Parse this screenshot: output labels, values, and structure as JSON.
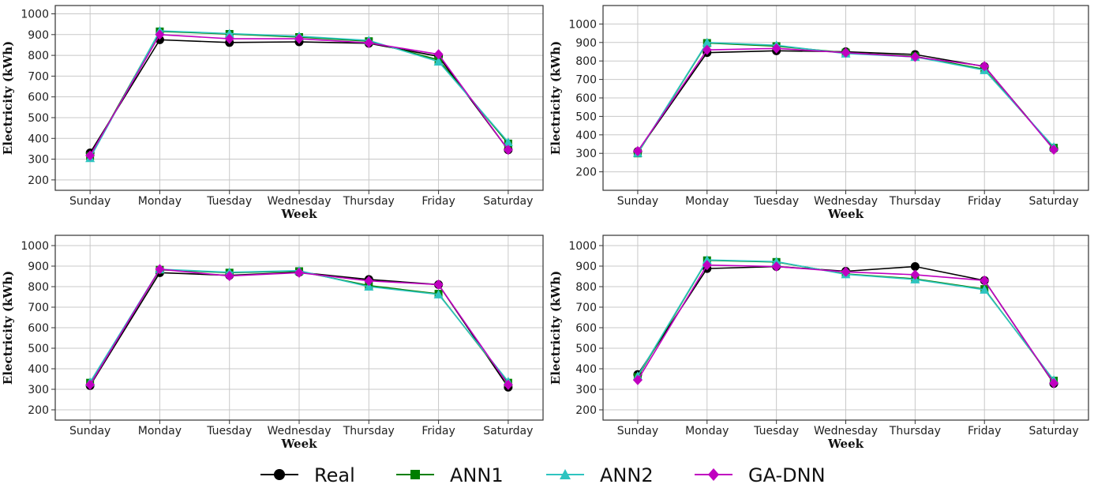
{
  "colors": {
    "Real": "#000000",
    "ANN1": "#007f00",
    "ANN2": "#2ec4c0",
    "GA-DNN": "#c000c0",
    "grid": "#c8c8c8",
    "frame": "#333333"
  },
  "legend": {
    "items": [
      {
        "name": "Real",
        "marker": "circle"
      },
      {
        "name": "ANN1",
        "marker": "square"
      },
      {
        "name": "ANN2",
        "marker": "triangle"
      },
      {
        "name": "GA-DNN",
        "marker": "diamond"
      }
    ]
  },
  "chart_data": [
    {
      "type": "line",
      "categories": [
        "Sunday",
        "Monday",
        "Tuesday",
        "Wednesday",
        "Thursday",
        "Friday",
        "Saturday"
      ],
      "xlabel": "Week",
      "ylabel": "Electricity (kWh)",
      "ylim": [
        150,
        1040
      ],
      "yticks": [
        200,
        300,
        400,
        500,
        600,
        700,
        800,
        900,
        1000
      ],
      "grid": true,
      "series": [
        {
          "name": "Real",
          "marker": "circle",
          "values": [
            330,
            875,
            862,
            865,
            858,
            795,
            345
          ]
        },
        {
          "name": "ANN1",
          "marker": "square",
          "values": [
            315,
            915,
            903,
            888,
            868,
            778,
            375
          ]
        },
        {
          "name": "ANN2",
          "marker": "triangle",
          "values": [
            305,
            918,
            905,
            892,
            872,
            770,
            382
          ]
        },
        {
          "name": "GA-DNN",
          "marker": "diamond",
          "values": [
            318,
            900,
            880,
            880,
            860,
            805,
            345
          ]
        }
      ]
    },
    {
      "type": "line",
      "categories": [
        "Sunday",
        "Monday",
        "Tuesday",
        "Wednesday",
        "Thursday",
        "Friday",
        "Saturday"
      ],
      "xlabel": "Week",
      "ylabel": "Electricity (kWh)",
      "ylim": [
        100,
        1100
      ],
      "yticks": [
        200,
        300,
        400,
        500,
        600,
        700,
        800,
        900,
        1000
      ],
      "grid": true,
      "series": [
        {
          "name": "Real",
          "marker": "circle",
          "values": [
            310,
            845,
            855,
            850,
            835,
            770,
            325
          ]
        },
        {
          "name": "ANN1",
          "marker": "square",
          "values": [
            300,
            897,
            880,
            845,
            825,
            755,
            330
          ]
        },
        {
          "name": "ANN2",
          "marker": "triangle",
          "values": [
            302,
            900,
            885,
            840,
            822,
            750,
            335
          ]
        },
        {
          "name": "GA-DNN",
          "marker": "diamond",
          "values": [
            312,
            860,
            868,
            845,
            822,
            772,
            320
          ]
        }
      ]
    },
    {
      "type": "line",
      "categories": [
        "Sunday",
        "Monday",
        "Tuesday",
        "Wednesday",
        "Thursday",
        "Friday",
        "Saturday"
      ],
      "xlabel": "Week",
      "ylabel": "Electricity (kWh)",
      "ylim": [
        150,
        1050
      ],
      "yticks": [
        200,
        300,
        400,
        500,
        600,
        700,
        800,
        900,
        1000
      ],
      "grid": true,
      "series": [
        {
          "name": "Real",
          "marker": "circle",
          "values": [
            318,
            868,
            855,
            870,
            835,
            810,
            310
          ]
        },
        {
          "name": "ANN1",
          "marker": "square",
          "values": [
            332,
            882,
            868,
            875,
            805,
            765,
            332
          ]
        },
        {
          "name": "ANN2",
          "marker": "triangle",
          "values": [
            335,
            885,
            870,
            878,
            800,
            762,
            338
          ]
        },
        {
          "name": "GA-DNN",
          "marker": "diamond",
          "values": [
            322,
            885,
            852,
            868,
            828,
            810,
            322
          ]
        }
      ]
    },
    {
      "type": "line",
      "categories": [
        "Sunday",
        "Monday",
        "Tuesday",
        "Wednesday",
        "Thursday",
        "Friday",
        "Saturday"
      ],
      "xlabel": "Week",
      "ylabel": "Electricity (kWh)",
      "ylim": [
        150,
        1050
      ],
      "yticks": [
        200,
        300,
        400,
        500,
        600,
        700,
        800,
        900,
        1000
      ],
      "grid": true,
      "series": [
        {
          "name": "Real",
          "marker": "circle",
          "values": [
            372,
            888,
            898,
            875,
            898,
            830,
            328
          ]
        },
        {
          "name": "ANN1",
          "marker": "square",
          "values": [
            360,
            928,
            920,
            862,
            838,
            788,
            342
          ]
        },
        {
          "name": "ANN2",
          "marker": "triangle",
          "values": [
            365,
            930,
            922,
            860,
            835,
            785,
            345
          ]
        },
        {
          "name": "GA-DNN",
          "marker": "diamond",
          "values": [
            345,
            905,
            898,
            872,
            858,
            830,
            330
          ]
        }
      ]
    }
  ]
}
